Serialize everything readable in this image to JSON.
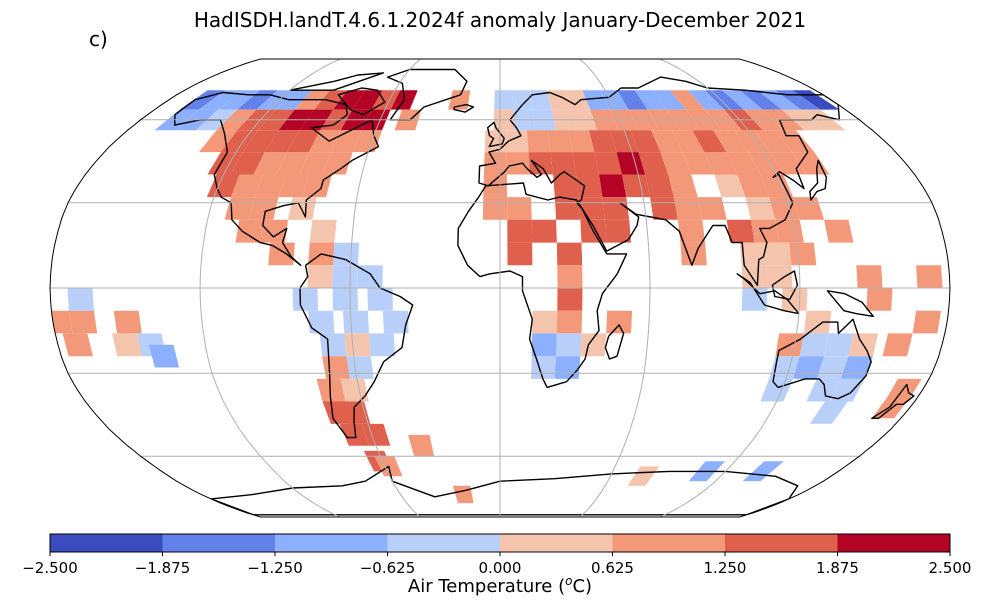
{
  "title": "HadISDH.landT.4.6.1.2024f anomaly January-December 2021",
  "panel_label": "c)",
  "map": {
    "projection": "robinson",
    "gridline_color": "#b0b0b0",
    "coastline_color": "#000000",
    "cells": [
      {
        "lon": -162,
        "lat": 68,
        "bin": 1
      },
      {
        "lon": -152,
        "lat": 68,
        "bin": 2
      },
      {
        "lon": -142,
        "lat": 68,
        "bin": 2
      },
      {
        "lon": -132,
        "lat": 68,
        "bin": 1
      },
      {
        "lon": -122,
        "lat": 68,
        "bin": 2
      },
      {
        "lon": -112,
        "lat": 68,
        "bin": 2
      },
      {
        "lon": -102,
        "lat": 68,
        "bin": 5
      },
      {
        "lon": -92,
        "lat": 68,
        "bin": 6
      },
      {
        "lon": -82,
        "lat": 68,
        "bin": 7
      },
      {
        "lon": -72,
        "lat": 68,
        "bin": 7
      },
      {
        "lon": -62,
        "lat": 68,
        "bin": 6
      },
      {
        "lon": -52,
        "lat": 68,
        "bin": 7
      },
      {
        "lon": -22,
        "lat": 68,
        "bin": 5
      },
      {
        "lon": 2,
        "lat": 68,
        "bin": 3
      },
      {
        "lon": 12,
        "lat": 68,
        "bin": 3
      },
      {
        "lon": 22,
        "lat": 68,
        "bin": 3
      },
      {
        "lon": 32,
        "lat": 68,
        "bin": 4
      },
      {
        "lon": 42,
        "lat": 68,
        "bin": 4
      },
      {
        "lon": 52,
        "lat": 68,
        "bin": 2
      },
      {
        "lon": 62,
        "lat": 68,
        "bin": 2
      },
      {
        "lon": 72,
        "lat": 68,
        "bin": 1
      },
      {
        "lon": 82,
        "lat": 68,
        "bin": 2
      },
      {
        "lon": 92,
        "lat": 68,
        "bin": 2
      },
      {
        "lon": 102,
        "lat": 68,
        "bin": 5
      },
      {
        "lon": 112,
        "lat": 68,
        "bin": 2
      },
      {
        "lon": 122,
        "lat": 68,
        "bin": 1
      },
      {
        "lon": 132,
        "lat": 68,
        "bin": 2
      },
      {
        "lon": 142,
        "lat": 68,
        "bin": 1
      },
      {
        "lon": 152,
        "lat": 68,
        "bin": 2
      },
      {
        "lon": 162,
        "lat": 68,
        "bin": 1
      },
      {
        "lon": 172,
        "lat": 68,
        "bin": 0
      },
      {
        "lon": -162,
        "lat": 60,
        "bin": 2
      },
      {
        "lon": -152,
        "lat": 60,
        "bin": 2
      },
      {
        "lon": -142,
        "lat": 60,
        "bin": 3
      },
      {
        "lon": -132,
        "lat": 60,
        "bin": 5
      },
      {
        "lon": -122,
        "lat": 60,
        "bin": 6
      },
      {
        "lon": -112,
        "lat": 60,
        "bin": 6
      },
      {
        "lon": -102,
        "lat": 60,
        "bin": 7
      },
      {
        "lon": -92,
        "lat": 60,
        "bin": 7
      },
      {
        "lon": -82,
        "lat": 60,
        "bin": 6
      },
      {
        "lon": -72,
        "lat": 60,
        "bin": 7
      },
      {
        "lon": -62,
        "lat": 60,
        "bin": 7
      },
      {
        "lon": -46,
        "lat": 60,
        "bin": 5
      },
      {
        "lon": 2,
        "lat": 60,
        "bin": 4
      },
      {
        "lon": 12,
        "lat": 60,
        "bin": 3
      },
      {
        "lon": 22,
        "lat": 60,
        "bin": 3
      },
      {
        "lon": 32,
        "lat": 60,
        "bin": 4
      },
      {
        "lon": 42,
        "lat": 60,
        "bin": 4
      },
      {
        "lon": 52,
        "lat": 60,
        "bin": 5
      },
      {
        "lon": 62,
        "lat": 60,
        "bin": 5
      },
      {
        "lon": 72,
        "lat": 60,
        "bin": 5
      },
      {
        "lon": 82,
        "lat": 60,
        "bin": 5
      },
      {
        "lon": 92,
        "lat": 60,
        "bin": 5
      },
      {
        "lon": 102,
        "lat": 60,
        "bin": 5
      },
      {
        "lon": 112,
        "lat": 60,
        "bin": 5
      },
      {
        "lon": 122,
        "lat": 60,
        "bin": 6
      },
      {
        "lon": 132,
        "lat": 60,
        "bin": 5
      },
      {
        "lon": 142,
        "lat": 60,
        "bin": 5
      },
      {
        "lon": 152,
        "lat": 60,
        "bin": 4
      },
      {
        "lon": 162,
        "lat": 60,
        "bin": 4
      },
      {
        "lon": -132,
        "lat": 52,
        "bin": 5
      },
      {
        "lon": -122,
        "lat": 52,
        "bin": 6
      },
      {
        "lon": -112,
        "lat": 52,
        "bin": 6
      },
      {
        "lon": -102,
        "lat": 52,
        "bin": 6
      },
      {
        "lon": -92,
        "lat": 52,
        "bin": 6
      },
      {
        "lon": -82,
        "lat": 52,
        "bin": 5
      },
      {
        "lon": -72,
        "lat": 52,
        "bin": 5
      },
      {
        "lon": -62,
        "lat": 52,
        "bin": 5
      },
      {
        "lon": -2,
        "lat": 52,
        "bin": 4
      },
      {
        "lon": 8,
        "lat": 52,
        "bin": 4
      },
      {
        "lon": 18,
        "lat": 52,
        "bin": 5
      },
      {
        "lon": 28,
        "lat": 52,
        "bin": 5
      },
      {
        "lon": 38,
        "lat": 52,
        "bin": 5
      },
      {
        "lon": 48,
        "lat": 52,
        "bin": 6
      },
      {
        "lon": 58,
        "lat": 52,
        "bin": 6
      },
      {
        "lon": 68,
        "lat": 52,
        "bin": 6
      },
      {
        "lon": 78,
        "lat": 52,
        "bin": 5
      },
      {
        "lon": 88,
        "lat": 52,
        "bin": 5
      },
      {
        "lon": 98,
        "lat": 52,
        "bin": 6
      },
      {
        "lon": 108,
        "lat": 52,
        "bin": 5
      },
      {
        "lon": 118,
        "lat": 52,
        "bin": 5
      },
      {
        "lon": 128,
        "lat": 52,
        "bin": 5
      },
      {
        "lon": 138,
        "lat": 52,
        "bin": 5
      },
      {
        "lon": -122,
        "lat": 44,
        "bin": 6
      },
      {
        "lon": -112,
        "lat": 44,
        "bin": 6
      },
      {
        "lon": -102,
        "lat": 44,
        "bin": 5
      },
      {
        "lon": -92,
        "lat": 44,
        "bin": 5
      },
      {
        "lon": -82,
        "lat": 44,
        "bin": 5
      },
      {
        "lon": -72,
        "lat": 44,
        "bin": 5
      },
      {
        "lon": -2,
        "lat": 44,
        "bin": 5
      },
      {
        "lon": 8,
        "lat": 44,
        "bin": 5
      },
      {
        "lon": 18,
        "lat": 44,
        "bin": 6
      },
      {
        "lon": 28,
        "lat": 44,
        "bin": 6
      },
      {
        "lon": 38,
        "lat": 44,
        "bin": 6
      },
      {
        "lon": 48,
        "lat": 44,
        "bin": 6
      },
      {
        "lon": 58,
        "lat": 44,
        "bin": 7
      },
      {
        "lon": 68,
        "lat": 44,
        "bin": 6
      },
      {
        "lon": 78,
        "lat": 44,
        "bin": 5
      },
      {
        "lon": 88,
        "lat": 44,
        "bin": 5
      },
      {
        "lon": 98,
        "lat": 44,
        "bin": 5
      },
      {
        "lon": 108,
        "lat": 44,
        "bin": 5
      },
      {
        "lon": 118,
        "lat": 44,
        "bin": 5
      },
      {
        "lon": 128,
        "lat": 44,
        "bin": 5
      },
      {
        "lon": 138,
        "lat": 44,
        "bin": 5
      },
      {
        "lon": -118,
        "lat": 36,
        "bin": 6
      },
      {
        "lon": -108,
        "lat": 36,
        "bin": 5
      },
      {
        "lon": -98,
        "lat": 36,
        "bin": 5
      },
      {
        "lon": -88,
        "lat": 36,
        "bin": 5
      },
      {
        "lon": -78,
        "lat": 36,
        "bin": 5
      },
      {
        "lon": -2,
        "lat": 36,
        "bin": 5
      },
      {
        "lon": 28,
        "lat": 36,
        "bin": 6
      },
      {
        "lon": 38,
        "lat": 36,
        "bin": 6
      },
      {
        "lon": 48,
        "lat": 36,
        "bin": 7
      },
      {
        "lon": 58,
        "lat": 36,
        "bin": 6
      },
      {
        "lon": 68,
        "lat": 36,
        "bin": 6
      },
      {
        "lon": 78,
        "lat": 36,
        "bin": 5
      },
      {
        "lon": 98,
        "lat": 36,
        "bin": 4
      },
      {
        "lon": 108,
        "lat": 36,
        "bin": 5
      },
      {
        "lon": 118,
        "lat": 36,
        "bin": 5
      },
      {
        "lon": -108,
        "lat": 28,
        "bin": 5
      },
      {
        "lon": -98,
        "lat": 28,
        "bin": 5
      },
      {
        "lon": -82,
        "lat": 28,
        "bin": 4
      },
      {
        "lon": -2,
        "lat": 28,
        "bin": 5
      },
      {
        "lon": 8,
        "lat": 28,
        "bin": 5
      },
      {
        "lon": 28,
        "lat": 28,
        "bin": 6
      },
      {
        "lon": 38,
        "lat": 28,
        "bin": 6
      },
      {
        "lon": 48,
        "lat": 28,
        "bin": 6
      },
      {
        "lon": 68,
        "lat": 28,
        "bin": 6
      },
      {
        "lon": 78,
        "lat": 28,
        "bin": 5
      },
      {
        "lon": 88,
        "lat": 28,
        "bin": 5
      },
      {
        "lon": 108,
        "lat": 28,
        "bin": 4
      },
      {
        "lon": 118,
        "lat": 28,
        "bin": 5
      },
      {
        "lon": 128,
        "lat": 28,
        "bin": 5
      },
      {
        "lon": -102,
        "lat": 20,
        "bin": 5
      },
      {
        "lon": -92,
        "lat": 20,
        "bin": 5
      },
      {
        "lon": -72,
        "lat": 20,
        "bin": 4
      },
      {
        "lon": 8,
        "lat": 20,
        "bin": 6
      },
      {
        "lon": 18,
        "lat": 20,
        "bin": 6
      },
      {
        "lon": 38,
        "lat": 20,
        "bin": 6
      },
      {
        "lon": 48,
        "lat": 20,
        "bin": 6
      },
      {
        "lon": 78,
        "lat": 20,
        "bin": 5
      },
      {
        "lon": 98,
        "lat": 20,
        "bin": 6
      },
      {
        "lon": 108,
        "lat": 20,
        "bin": 5
      },
      {
        "lon": 118,
        "lat": 20,
        "bin": 5
      },
      {
        "lon": 138,
        "lat": 20,
        "bin": 5
      },
      {
        "lon": -88,
        "lat": 12,
        "bin": 5
      },
      {
        "lon": -72,
        "lat": 12,
        "bin": 5
      },
      {
        "lon": -62,
        "lat": 12,
        "bin": 3
      },
      {
        "lon": 8,
        "lat": 12,
        "bin": 6
      },
      {
        "lon": 28,
        "lat": 12,
        "bin": 6
      },
      {
        "lon": 78,
        "lat": 12,
        "bin": 5
      },
      {
        "lon": 102,
        "lat": 12,
        "bin": 4
      },
      {
        "lon": 112,
        "lat": 12,
        "bin": 4
      },
      {
        "lon": 122,
        "lat": 12,
        "bin": 5
      },
      {
        "lon": -72,
        "lat": 4,
        "bin": 4
      },
      {
        "lon": -62,
        "lat": 4,
        "bin": 3
      },
      {
        "lon": -52,
        "lat": 4,
        "bin": 3
      },
      {
        "lon": 28,
        "lat": 4,
        "bin": 5
      },
      {
        "lon": 102,
        "lat": 4,
        "bin": 4
      },
      {
        "lon": 112,
        "lat": 4,
        "bin": 4
      },
      {
        "lon": 148,
        "lat": 4,
        "bin": 5
      },
      {
        "lon": 172,
        "lat": 4,
        "bin": 5
      },
      {
        "lon": -168,
        "lat": -4,
        "bin": 3
      },
      {
        "lon": -78,
        "lat": -4,
        "bin": 3
      },
      {
        "lon": -62,
        "lat": -4,
        "bin": 3
      },
      {
        "lon": -48,
        "lat": -4,
        "bin": 3
      },
      {
        "lon": 28,
        "lat": -4,
        "bin": 6
      },
      {
        "lon": 102,
        "lat": -4,
        "bin": 3
      },
      {
        "lon": 118,
        "lat": -4,
        "bin": 4
      },
      {
        "lon": 152,
        "lat": -4,
        "bin": 5
      },
      {
        "lon": -178,
        "lat": -12,
        "bin": 5
      },
      {
        "lon": -168,
        "lat": -12,
        "bin": 5
      },
      {
        "lon": -150,
        "lat": -12,
        "bin": 5
      },
      {
        "lon": -72,
        "lat": -12,
        "bin": 3
      },
      {
        "lon": -58,
        "lat": -12,
        "bin": 3
      },
      {
        "lon": -42,
        "lat": -12,
        "bin": 3
      },
      {
        "lon": 18,
        "lat": -12,
        "bin": 4
      },
      {
        "lon": 28,
        "lat": -12,
        "bin": 5
      },
      {
        "lon": 48,
        "lat": -12,
        "bin": 5
      },
      {
        "lon": 128,
        "lat": -12,
        "bin": 4
      },
      {
        "lon": 172,
        "lat": -12,
        "bin": 5
      },
      {
        "lon": -172,
        "lat": -20,
        "bin": 5
      },
      {
        "lon": -152,
        "lat": -20,
        "bin": 4
      },
      {
        "lon": -142,
        "lat": -20,
        "bin": 3
      },
      {
        "lon": -68,
        "lat": -20,
        "bin": 3
      },
      {
        "lon": -58,
        "lat": -20,
        "bin": 4
      },
      {
        "lon": -48,
        "lat": -20,
        "bin": 3
      },
      {
        "lon": 18,
        "lat": -20,
        "bin": 2
      },
      {
        "lon": 28,
        "lat": -20,
        "bin": 3
      },
      {
        "lon": 38,
        "lat": -20,
        "bin": 4
      },
      {
        "lon": 118,
        "lat": -20,
        "bin": 5
      },
      {
        "lon": 128,
        "lat": -20,
        "bin": 3
      },
      {
        "lon": 138,
        "lat": -20,
        "bin": 3
      },
      {
        "lon": 148,
        "lat": -20,
        "bin": 4
      },
      {
        "lon": 162,
        "lat": -20,
        "bin": 5
      },
      {
        "lon": -138,
        "lat": -24,
        "bin": 2
      },
      {
        "lon": -68,
        "lat": -28,
        "bin": 5
      },
      {
        "lon": -58,
        "lat": -28,
        "bin": 3
      },
      {
        "lon": 18,
        "lat": -28,
        "bin": 3
      },
      {
        "lon": 28,
        "lat": -28,
        "bin": 2
      },
      {
        "lon": 118,
        "lat": -28,
        "bin": 3
      },
      {
        "lon": 128,
        "lat": -28,
        "bin": 2
      },
      {
        "lon": 138,
        "lat": -28,
        "bin": 3
      },
      {
        "lon": 148,
        "lat": -28,
        "bin": 2
      },
      {
        "lon": -72,
        "lat": -36,
        "bin": 5
      },
      {
        "lon": -62,
        "lat": -36,
        "bin": 4
      },
      {
        "lon": 118,
        "lat": -36,
        "bin": 3
      },
      {
        "lon": 138,
        "lat": -36,
        "bin": 3
      },
      {
        "lon": 148,
        "lat": -36,
        "bin": 3
      },
      {
        "lon": 172,
        "lat": -36,
        "bin": 5
      },
      {
        "lon": -72,
        "lat": -44,
        "bin": 6
      },
      {
        "lon": -64,
        "lat": -44,
        "bin": 6
      },
      {
        "lon": 146,
        "lat": -44,
        "bin": 3
      },
      {
        "lon": 172,
        "lat": -42,
        "bin": 5
      },
      {
        "lon": -68,
        "lat": -52,
        "bin": 6
      },
      {
        "lon": -58,
        "lat": -52,
        "bin": 6
      },
      {
        "lon": -38,
        "lat": -56,
        "bin": 5
      },
      {
        "lon": -62,
        "lat": -62,
        "bin": 6
      },
      {
        "lon": -58,
        "lat": -64,
        "bin": 5
      },
      {
        "lon": 78,
        "lat": -68,
        "bin": 4
      },
      {
        "lon": 110,
        "lat": -66,
        "bin": 2
      },
      {
        "lon": 140,
        "lat": -66,
        "bin": 2
      },
      {
        "lon": -22,
        "lat": -76,
        "bin": 5
      }
    ]
  },
  "colorbar": {
    "label": "Air Temperature (°C)",
    "label_main": "Air Temperature (",
    "label_sup": "o",
    "label_end": "C)",
    "bins": [
      -2.5,
      -1.875,
      -1.25,
      -0.625,
      0.0,
      0.625,
      1.25,
      1.875,
      2.5
    ],
    "tick_labels": [
      "−2.500",
      "−1.875",
      "−1.250",
      "−0.625",
      "0.000",
      "0.625",
      "1.250",
      "1.875",
      "2.500"
    ],
    "colors": [
      "#3b4cc0",
      "#6282ea",
      "#8db0fe",
      "#b8d0f9",
      "#f5c4ac",
      "#f4987a",
      "#de604d",
      "#b40426"
    ]
  }
}
